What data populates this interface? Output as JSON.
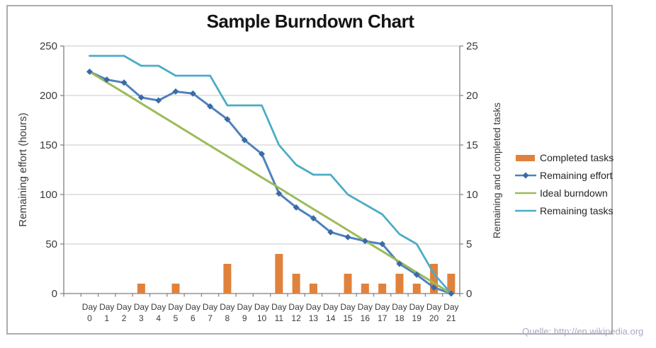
{
  "source_note": "Quelle: http://en.wikipedia.org",
  "chart_data": {
    "type": "combo",
    "title": "Sample Burndown Chart",
    "categories": [
      "Day 0",
      "Day 1",
      "Day 2",
      "Day 3",
      "Day 4",
      "Day 5",
      "Day 6",
      "Day 7",
      "Day 8",
      "Day 9",
      "Day 10",
      "Day 11",
      "Day 12",
      "Day 13",
      "Day 14",
      "Day 15",
      "Day 16",
      "Day 17",
      "Day 18",
      "Day 19",
      "Day 20",
      "Day 21"
    ],
    "axes": {
      "left": {
        "label": "Remaining effort (hours)",
        "ticks": [
          0,
          50,
          100,
          150,
          200,
          250
        ],
        "range": [
          0,
          250
        ]
      },
      "right": {
        "label": "Remaining and completed tasks",
        "ticks": [
          0,
          5,
          10,
          15,
          20,
          25
        ],
        "range": [
          0,
          25
        ]
      }
    },
    "grid": "horizontal",
    "legend_position": "right",
    "series": [
      {
        "name": "Completed tasks",
        "type": "bar",
        "axis": "right",
        "color": "#E0823C",
        "values": [
          0,
          0,
          0,
          1,
          0,
          1,
          0,
          0,
          3,
          0,
          0,
          4,
          2,
          1,
          0,
          2,
          1,
          1,
          2,
          1,
          3,
          2
        ]
      },
      {
        "name": "Remaining effort",
        "type": "line",
        "marker": "diamond",
        "axis": "left",
        "color": "#4F81BD",
        "marker_color": "#3A6BA5",
        "values": [
          224,
          216,
          213,
          198,
          195,
          204,
          202,
          189,
          176,
          155,
          141,
          101,
          87,
          76,
          62,
          57,
          53,
          50,
          30,
          19,
          6,
          0
        ]
      },
      {
        "name": "Ideal burndown",
        "type": "line",
        "axis": "left",
        "color": "#9BBB59",
        "values": [
          224,
          213.3,
          202.7,
          192,
          181.3,
          170.7,
          160,
          149.3,
          138.7,
          128,
          117.3,
          106.7,
          96,
          85.3,
          74.7,
          64,
          53.3,
          42.7,
          32,
          21.3,
          10.7,
          0
        ]
      },
      {
        "name": "Remaining tasks",
        "type": "line",
        "axis": "right",
        "color": "#4BACC6",
        "values": [
          24,
          24,
          24,
          23,
          23,
          22,
          22,
          22,
          19,
          19,
          19,
          15,
          13,
          12,
          12,
          10,
          9,
          8,
          6,
          5,
          2,
          0
        ]
      }
    ]
  }
}
